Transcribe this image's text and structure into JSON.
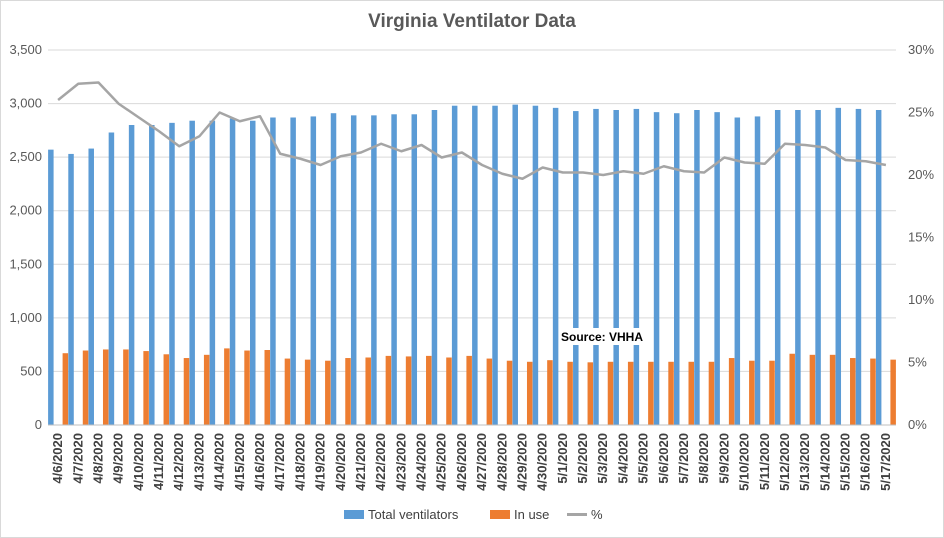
{
  "chart_data": {
    "type": "bar",
    "title": "Virginia Ventilator Data",
    "categories": [
      "4/6/2020",
      "4/7/2020",
      "4/8/2020",
      "4/9/2020",
      "4/10/2020",
      "4/11/2020",
      "4/12/2020",
      "4/13/2020",
      "4/14/2020",
      "4/15/2020",
      "4/16/2020",
      "4/17/2020",
      "4/18/2020",
      "4/19/2020",
      "4/20/2020",
      "4/21/2020",
      "4/22/2020",
      "4/23/2020",
      "4/24/2020",
      "4/25/2020",
      "4/26/2020",
      "4/27/2020",
      "4/28/2020",
      "4/29/2020",
      "4/30/2020",
      "5/1/2020",
      "5/2/2020",
      "5/3/2020",
      "5/4/2020",
      "5/5/2020",
      "5/6/2020",
      "5/7/2020",
      "5/8/2020",
      "5/9/2020",
      "5/10/2020",
      "5/11/2020",
      "5/12/2020",
      "5/13/2020",
      "5/14/2020",
      "5/15/2020",
      "5/16/2020",
      "5/17/2020"
    ],
    "series": [
      {
        "name": "Total ventilators",
        "type": "bar",
        "axis": "left",
        "color": "#5b9bd5",
        "values": [
          2570,
          2530,
          2580,
          2730,
          2800,
          2800,
          2820,
          2840,
          2840,
          2860,
          2840,
          2870,
          2870,
          2880,
          2910,
          2890,
          2890,
          2900,
          2900,
          2940,
          2980,
          2980,
          2980,
          2990,
          2980,
          2960,
          2930,
          2950,
          2940,
          2950,
          2920,
          2910,
          2940,
          2920,
          2870,
          2880,
          2940,
          2940,
          2940,
          2960,
          2950,
          2940
        ]
      },
      {
        "name": "In use",
        "type": "bar",
        "axis": "left",
        "color": "#ed7d31",
        "values": [
          670,
          695,
          705,
          705,
          690,
          660,
          625,
          655,
          715,
          695,
          700,
          620,
          610,
          600,
          625,
          630,
          645,
          640,
          645,
          630,
          645,
          620,
          600,
          590,
          605,
          590,
          585,
          590,
          590,
          590,
          590,
          590,
          590,
          625,
          600,
          600,
          665,
          655,
          655,
          625,
          620,
          610
        ]
      },
      {
        "name": "%",
        "type": "line",
        "axis": "right",
        "color": "#a5a5a5",
        "values": [
          26.0,
          27.3,
          27.4,
          25.7,
          24.6,
          23.5,
          22.3,
          23.1,
          25.0,
          24.3,
          24.7,
          21.7,
          21.3,
          20.8,
          21.5,
          21.8,
          22.5,
          21.9,
          22.4,
          21.4,
          21.8,
          20.8,
          20.1,
          19.7,
          20.6,
          20.2,
          20.2,
          20.0,
          20.3,
          20.1,
          20.7,
          20.3,
          20.2,
          21.4,
          21.0,
          20.9,
          22.5,
          22.4,
          22.2,
          21.2,
          21.1,
          20.8
        ]
      }
    ],
    "y_left": {
      "min": 0,
      "max": 3500,
      "ticks": [
        "0",
        "500",
        "1,000",
        "1,500",
        "2,000",
        "2,500",
        "3,000",
        "3,500"
      ]
    },
    "y_right": {
      "min": 0,
      "max": 30,
      "ticks": [
        "0%",
        "5%",
        "10%",
        "15%",
        "20%",
        "25%",
        "30%"
      ]
    },
    "grid": true,
    "legend_position": "bottom",
    "annotation": "Source: VHHA"
  }
}
